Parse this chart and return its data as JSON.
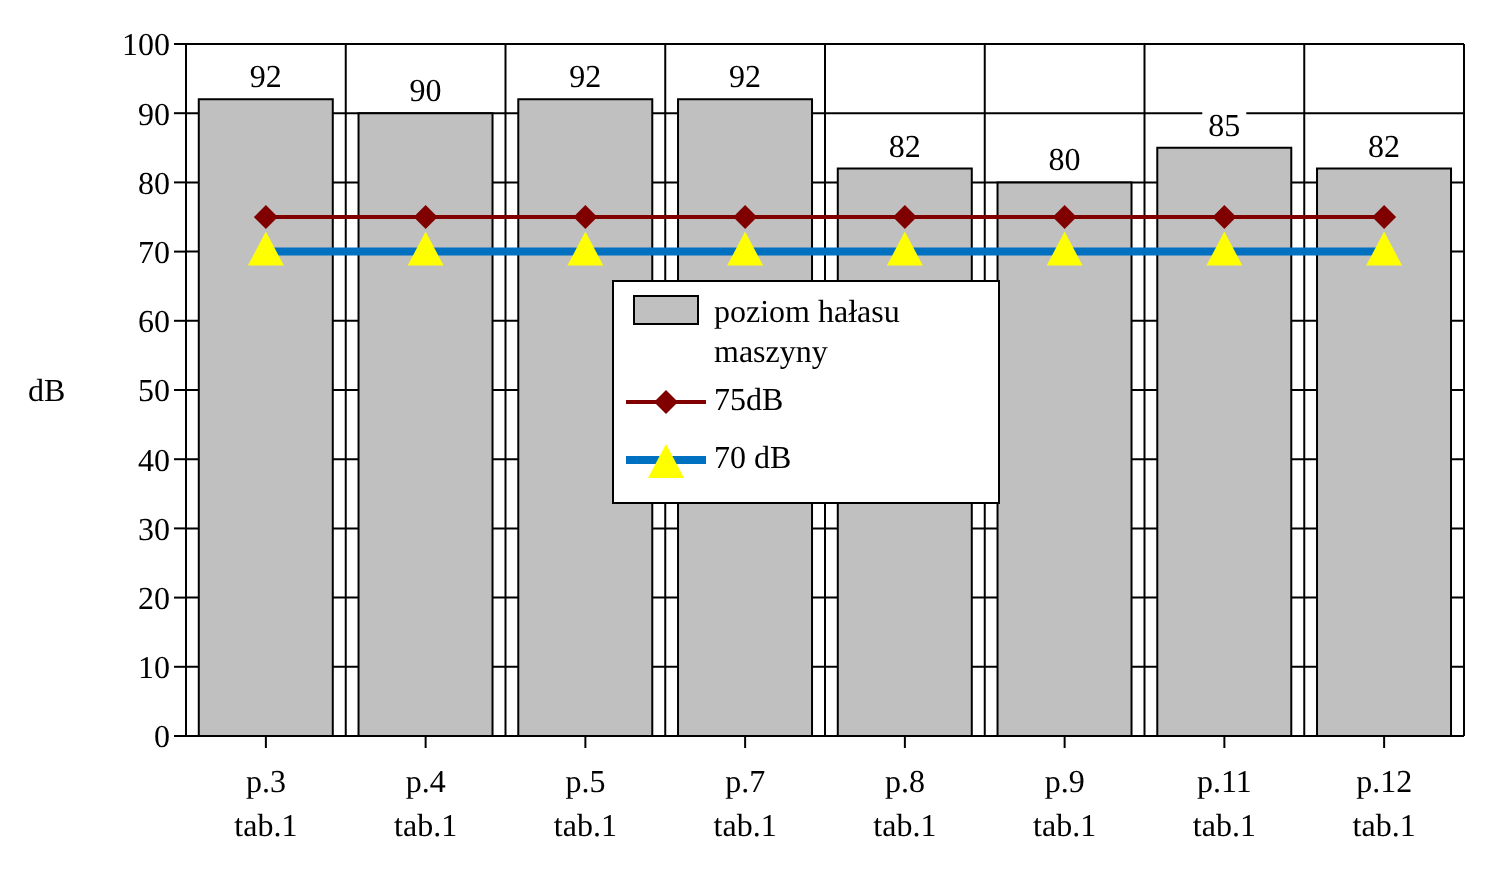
{
  "chart_data": {
    "type": "bar",
    "ylabel": "dB",
    "categories": [
      "p.3 tab.1",
      "p.4 tab.1",
      "p.5 tab.1",
      "p.7 tab.1",
      "p.8 tab.1",
      "p.9 tab.1",
      "p.11 tab.1",
      "p.12 tab.1"
    ],
    "series": [
      {
        "name": "poziom hałasu maszyny",
        "color": "#c0c0c0",
        "values": [
          92,
          90,
          92,
          92,
          82,
          80,
          85,
          82
        ],
        "value_labels": [
          "92",
          "90",
          "92",
          "92",
          "82",
          "80",
          "85",
          "82"
        ]
      },
      {
        "name": "75dB",
        "type": "line",
        "color": "#800000",
        "marker": "diamond",
        "values": [
          75,
          75,
          75,
          75,
          75,
          75,
          75,
          75
        ]
      },
      {
        "name": "70 dB",
        "type": "line",
        "color": "#0070c0",
        "marker": "triangle",
        "values": [
          70,
          70,
          70,
          70,
          70,
          70,
          70,
          70
        ]
      }
    ],
    "ylim": [
      0,
      100
    ],
    "yticks": [
      0,
      10,
      20,
      30,
      40,
      50,
      60,
      70,
      80,
      90,
      100
    ],
    "grid": true,
    "legend": "center"
  }
}
